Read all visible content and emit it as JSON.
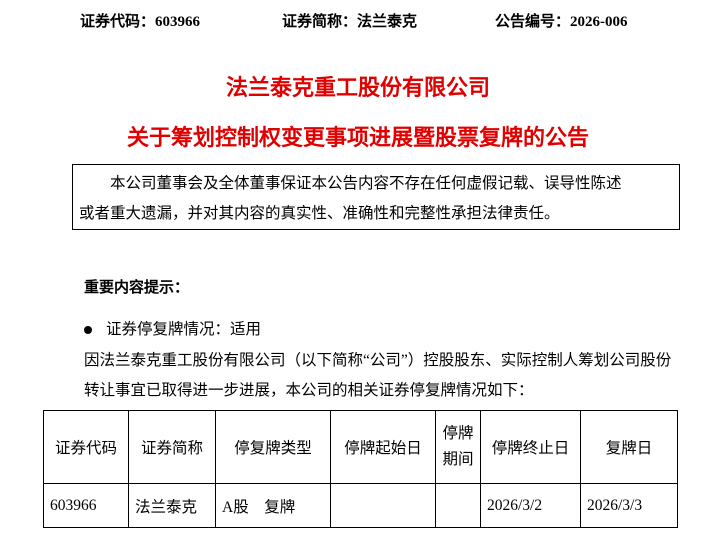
{
  "header": {
    "code": "证券代码：603966",
    "short_name": "证券简称：法兰泰克",
    "notice_no": "公告编号：2026-006"
  },
  "company_title": "法兰泰克重工股份有限公司",
  "notice_title": "关于筹划控制权变更事项进展暨股票复牌的公告",
  "disclaimer": {
    "line1": "本公司董事会及全体董事保证本公告内容不存在任何虚假记载、误导性陈述",
    "line2": "或者重大遗漏，并对其内容的真实性、准确性和完整性承担法律责任。"
  },
  "section_heading": "重要内容提示：",
  "bullet": "证券停复牌情况：适用",
  "paragraph": "因法兰泰克重工股份有限公司（以下简称“公司”）控股股东、实际控制人筹划公司股份转让事宜已取得进一步进展，本公司的相关证券停复牌情况如下：",
  "table": {
    "headers": [
      "证券代码",
      "证券简称",
      "停复牌类型",
      "停牌起始日",
      "停牌期间",
      "停牌终止日",
      "复牌日"
    ],
    "rows": [
      [
        "603966",
        "法兰泰克",
        "A股　复牌",
        "",
        "",
        "2026/3/2",
        "2026/3/3"
      ]
    ]
  }
}
